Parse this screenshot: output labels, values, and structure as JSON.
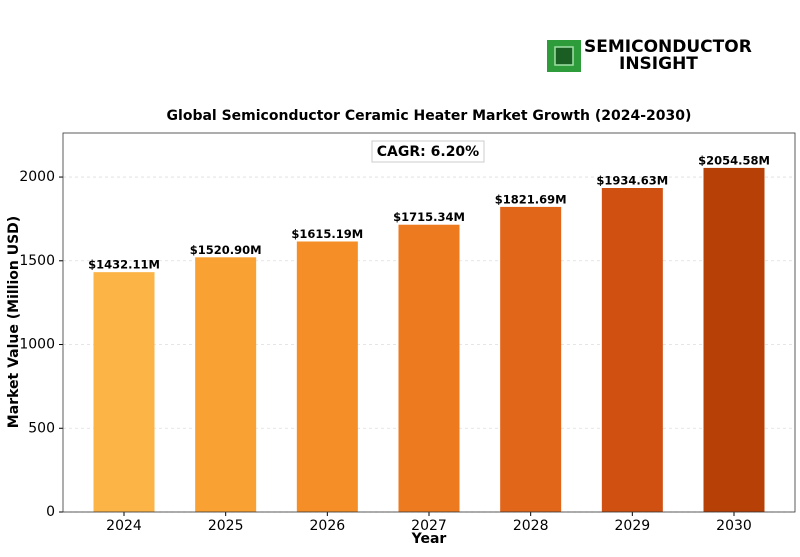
{
  "logo": {
    "line1": "SEMICONDUCTOR",
    "line2": "INSIGHT"
  },
  "chart_data": {
    "type": "bar",
    "title": "Global Semiconductor Ceramic Heater Market Growth (2024-2030)",
    "annotation": "CAGR: 6.20%",
    "x_label": "Year",
    "y_label": "Market Value (Million USD)",
    "categories": [
      "2024",
      "2025",
      "2026",
      "2027",
      "2028",
      "2029",
      "2030"
    ],
    "values": [
      1432.11,
      1520.9,
      1615.19,
      1715.34,
      1821.69,
      1934.63,
      2054.58
    ],
    "value_labels": [
      "$1432.11M",
      "$1520.90M",
      "$1615.19M",
      "$1715.34M",
      "$1821.69M",
      "$1934.63M",
      "$2054.58M"
    ],
    "colors": [
      "#FDB446",
      "#F9A133",
      "#F58E26",
      "#EE7A1F",
      "#E2661A",
      "#CF5010",
      "#B64005"
    ],
    "ylim": [
      0,
      2263
    ],
    "yticks": [
      0,
      500,
      1000,
      1500,
      2000
    ],
    "grid": true
  }
}
